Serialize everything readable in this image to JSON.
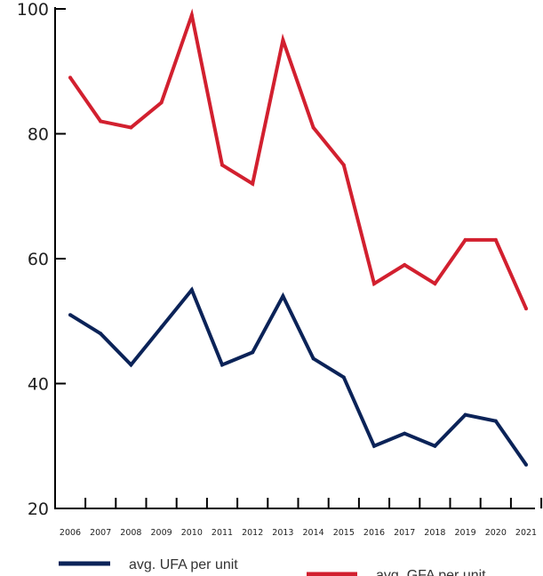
{
  "chart_data": {
    "type": "line",
    "title": "",
    "xlabel": "",
    "ylabel": "",
    "categories": [
      "2006",
      "2007",
      "2008",
      "2009",
      "2010",
      "2011",
      "2012",
      "2013",
      "2014",
      "2015",
      "2016",
      "2017",
      "2018",
      "2019",
      "2020",
      "2021"
    ],
    "yticks": [
      "20",
      "40",
      "60",
      "80",
      "100"
    ],
    "ylim": [
      20,
      100
    ],
    "grid": false,
    "legend_position": "bottom",
    "series": [
      {
        "name": "avg. UFA per unit",
        "color": "#0b2358",
        "values": [
          51,
          48,
          43,
          49,
          55,
          43,
          45,
          54,
          44,
          41,
          30,
          32,
          30,
          35,
          34,
          27
        ]
      },
      {
        "name": "avg. GFA per unit",
        "color": "#d2202f",
        "values": [
          89,
          82,
          81,
          85,
          99,
          75,
          72,
          95,
          81,
          75,
          56,
          59,
          56,
          63,
          63,
          52
        ]
      }
    ]
  }
}
